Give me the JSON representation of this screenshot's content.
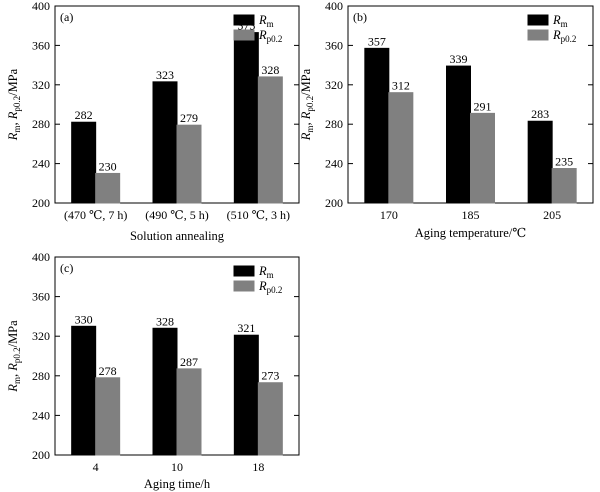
{
  "chart_data": [
    {
      "type": "bar",
      "panel_label": "(a)",
      "categories": [
        "(470 ℃, 7 h)",
        "(490 ℃, 5 h)",
        "(510 ℃, 3 h)"
      ],
      "series": [
        {
          "name": "Rm",
          "color": "#000000",
          "values": [
            282,
            323,
            373
          ]
        },
        {
          "name": "Rp0.2",
          "color": "#808080",
          "values": [
            230,
            279,
            328
          ]
        }
      ],
      "xlabel": "Solution annealing",
      "ylabel": "Rm, Rp0.2/MPa",
      "ylim": [
        200,
        400
      ],
      "yticks": [
        "200",
        "240",
        "280",
        "320",
        "360",
        "400"
      ],
      "legend": "top-right",
      "grid": false
    },
    {
      "type": "bar",
      "panel_label": "(b)",
      "categories": [
        "170",
        "185",
        "205"
      ],
      "series": [
        {
          "name": "Rm",
          "color": "#000000",
          "values": [
            357,
            339,
            283
          ]
        },
        {
          "name": "Rp0.2",
          "color": "#808080",
          "values": [
            312,
            291,
            235
          ]
        }
      ],
      "xlabel": "Aging temperature/℃",
      "ylabel": "Rm, Rp0.2/MPa",
      "ylim": [
        200,
        400
      ],
      "yticks": [
        "200",
        "240",
        "280",
        "320",
        "360",
        "400"
      ],
      "legend": "top-right",
      "grid": false
    },
    {
      "type": "bar",
      "panel_label": "(c)",
      "categories": [
        "4",
        "10",
        "18"
      ],
      "series": [
        {
          "name": "Rm",
          "color": "#000000",
          "values": [
            330,
            328,
            321
          ]
        },
        {
          "name": "Rp0.2",
          "color": "#808080",
          "values": [
            278,
            287,
            273
          ]
        }
      ],
      "xlabel": "Aging time/h",
      "ylabel": "Rm, Rp0.2/MPa",
      "ylim": [
        200,
        400
      ],
      "yticks": [
        "200",
        "240",
        "280",
        "320",
        "360",
        "400"
      ],
      "legend": "top-right",
      "grid": false
    }
  ]
}
